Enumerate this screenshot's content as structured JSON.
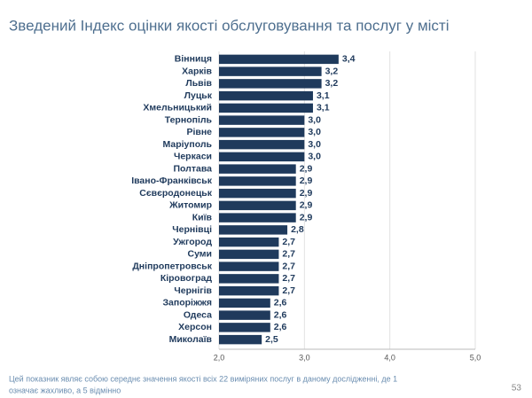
{
  "chart_data": {
    "type": "barh",
    "title": "Зведений Індекс оцінки якості обслуговування та послуг у місті",
    "categories": [
      "Вінниця",
      "Харків",
      "Львів",
      "Луцьк",
      "Хмельницький",
      "Тернопіль",
      "Рівне",
      "Маріуполь",
      "Черкаси",
      "Полтава",
      "Івано-Франківськ",
      "Сєвєродонецьк",
      "Житомир",
      "Київ",
      "Чернівці",
      "Ужгород",
      "Суми",
      "Дніпропетровськ",
      "Кіровоград",
      "Чернігів",
      "Запоріжжя",
      "Одеса",
      "Херсон",
      "Миколаїв"
    ],
    "values": [
      3.4,
      3.2,
      3.2,
      3.1,
      3.1,
      3.0,
      3.0,
      3.0,
      3.0,
      2.9,
      2.9,
      2.9,
      2.9,
      2.9,
      2.8,
      2.7,
      2.7,
      2.7,
      2.7,
      2.7,
      2.6,
      2.6,
      2.6,
      2.5
    ],
    "value_labels": [
      "3,4",
      "3,2",
      "3,2",
      "3,1",
      "3,1",
      "3,0",
      "3,0",
      "3,0",
      "3,0",
      "2,9",
      "2,9",
      "2,9",
      "2,9",
      "2,9",
      "2,8",
      "2,7",
      "2,7",
      "2,7",
      "2,7",
      "2,7",
      "2,6",
      "2,6",
      "2,6",
      "2,5"
    ],
    "color": "#1f3a5c",
    "xlim": [
      2.0,
      5.0
    ],
    "xticks": [
      {
        "value": 2.0,
        "label": "2,0"
      },
      {
        "value": 3.0,
        "label": "3,0"
      },
      {
        "value": 4.0,
        "label": "4,0"
      },
      {
        "value": 5.0,
        "label": "5,0"
      }
    ],
    "grid": true
  },
  "footnote": [
    "Цей показник являє собою середнє значення якості всіх 22 виміряних послуг в даному дослідженні, де 1",
    "означає жахливо, а 5 відмінно"
  ],
  "page_number": "53"
}
